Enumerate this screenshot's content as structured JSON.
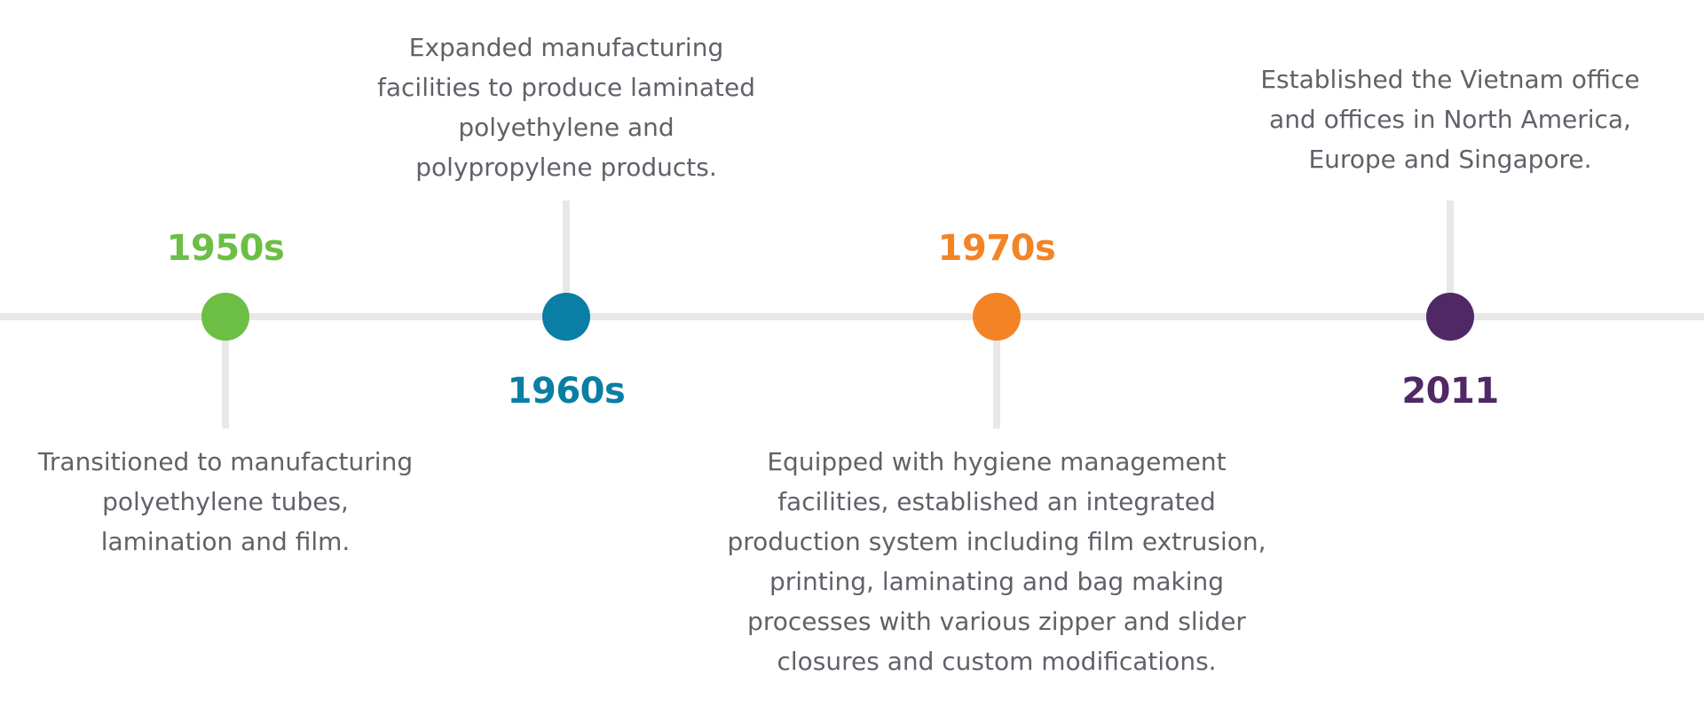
{
  "events": [
    {
      "year": "1950s",
      "color": "#6cbe45",
      "description": "Transitioned to manufacturing polyethylene tubes, lamination and film."
    },
    {
      "year": "1960s",
      "color": "#0a7ea4",
      "description": "Expanded manufacturing facilities to produce laminated polyethylene and polypropylene products."
    },
    {
      "year": "1970s",
      "color": "#f38426",
      "description": "Equipped with hygiene management facilities, established an integrated production system including film extrusion, printing, laminating and bag making processes with various zipper and slider closures and custom modifications."
    },
    {
      "year": "2011",
      "color": "#512866",
      "description": "Established the Vietnam office and offices in North America, Europe and Singapore."
    }
  ],
  "colors": {
    "line": "#e8e8e8",
    "text": "#5f6268"
  }
}
